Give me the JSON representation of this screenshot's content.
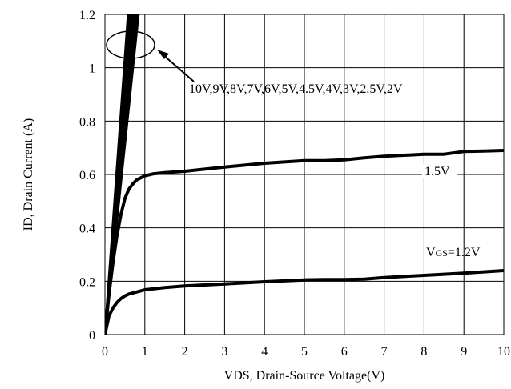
{
  "chart_data": {
    "type": "line",
    "xlabel": "VDS, Drain-Source Voltage(V)",
    "ylabel": "ID, Drain Current (A)",
    "xlim": [
      0,
      10
    ],
    "ylim": [
      0,
      1.2
    ],
    "x_ticks": [
      "0",
      "1",
      "2",
      "3",
      "4",
      "5",
      "6",
      "7",
      "8",
      "9",
      "10"
    ],
    "y_ticks": [
      "0",
      "0.2",
      "0.4",
      "0.6",
      "0.8",
      "1",
      "1.2"
    ],
    "grid": true,
    "series": [
      {
        "name": "10V,9V,8V,7V,6V,5V,4.5V,4V,3V,2.5V,2V",
        "x": [
          0,
          0.58
        ],
        "y": [
          0,
          1.2
        ]
      },
      {
        "name": "10V,9V,8V,7V,6V,5V,4.5V,4V,3V,2.5V,2V",
        "x": [
          0,
          0.6
        ],
        "y": [
          0,
          1.2
        ]
      },
      {
        "name": "10V,9V,8V,7V,6V,5V,4.5V,4V,3V,2.5V,2V",
        "x": [
          0,
          0.62
        ],
        "y": [
          0,
          1.2
        ]
      },
      {
        "name": "10V,9V,8V,7V,6V,5V,4.5V,4V,3V,2.5V,2V",
        "x": [
          0,
          0.65
        ],
        "y": [
          0,
          1.2
        ]
      },
      {
        "name": "10V,9V,8V,7V,6V,5V,4.5V,4V,3V,2.5V,2V",
        "x": [
          0,
          0.68
        ],
        "y": [
          0,
          1.2
        ]
      },
      {
        "name": "10V,9V,8V,7V,6V,5V,4.5V,4V,3V,2.5V,2V",
        "x": [
          0,
          0.72
        ],
        "y": [
          0,
          1.2
        ]
      },
      {
        "name": "10V,9V,8V,7V,6V,5V,4.5V,4V,3V,2.5V,2V",
        "x": [
          0,
          0.76
        ],
        "y": [
          0,
          1.2
        ]
      },
      {
        "name": "10V,9V,8V,7V,6V,5V,4.5V,4V,3V,2.5V,2V",
        "x": [
          0,
          0.8
        ],
        "y": [
          0,
          1.2
        ]
      },
      {
        "name": "10V,9V,8V,7V,6V,5V,4.5V,4V,3V,2.5V,2V",
        "x": [
          0,
          0.84
        ],
        "y": [
          0,
          1.2
        ]
      },
      {
        "name": "1.5V",
        "x": [
          0,
          0.1,
          0.2,
          0.3,
          0.4,
          0.5,
          0.6,
          0.7,
          0.8,
          1.0,
          1.2,
          1.5,
          2,
          3,
          4,
          5,
          5.5,
          6,
          6.5,
          7,
          8,
          8.5,
          9,
          9.5,
          10
        ],
        "y": [
          0,
          0.15,
          0.27,
          0.37,
          0.45,
          0.51,
          0.545,
          0.565,
          0.58,
          0.595,
          0.602,
          0.607,
          0.612,
          0.628,
          0.642,
          0.652,
          0.652,
          0.655,
          0.662,
          0.668,
          0.676,
          0.676,
          0.686,
          0.688,
          0.69
        ]
      },
      {
        "name": "VGS=1.2V",
        "x": [
          0,
          0.1,
          0.2,
          0.3,
          0.4,
          0.5,
          0.6,
          0.8,
          1.0,
          1.5,
          2,
          3,
          4,
          5,
          5.5,
          6,
          6.5,
          7,
          8,
          9,
          10
        ],
        "y": [
          0,
          0.07,
          0.1,
          0.12,
          0.135,
          0.145,
          0.152,
          0.16,
          0.168,
          0.176,
          0.182,
          0.19,
          0.198,
          0.205,
          0.206,
          0.206,
          0.208,
          0.214,
          0.222,
          0.23,
          0.24
        ]
      }
    ],
    "annotations": {
      "group_label": "10V,9V,8V,7V,6V,5V,4.5V,4V,3V,2.5V,2V",
      "label_15": "1.5V",
      "label_12_prefix": "V",
      "label_12_sub": "GS",
      "label_12_suffix": "=1.2V"
    }
  }
}
